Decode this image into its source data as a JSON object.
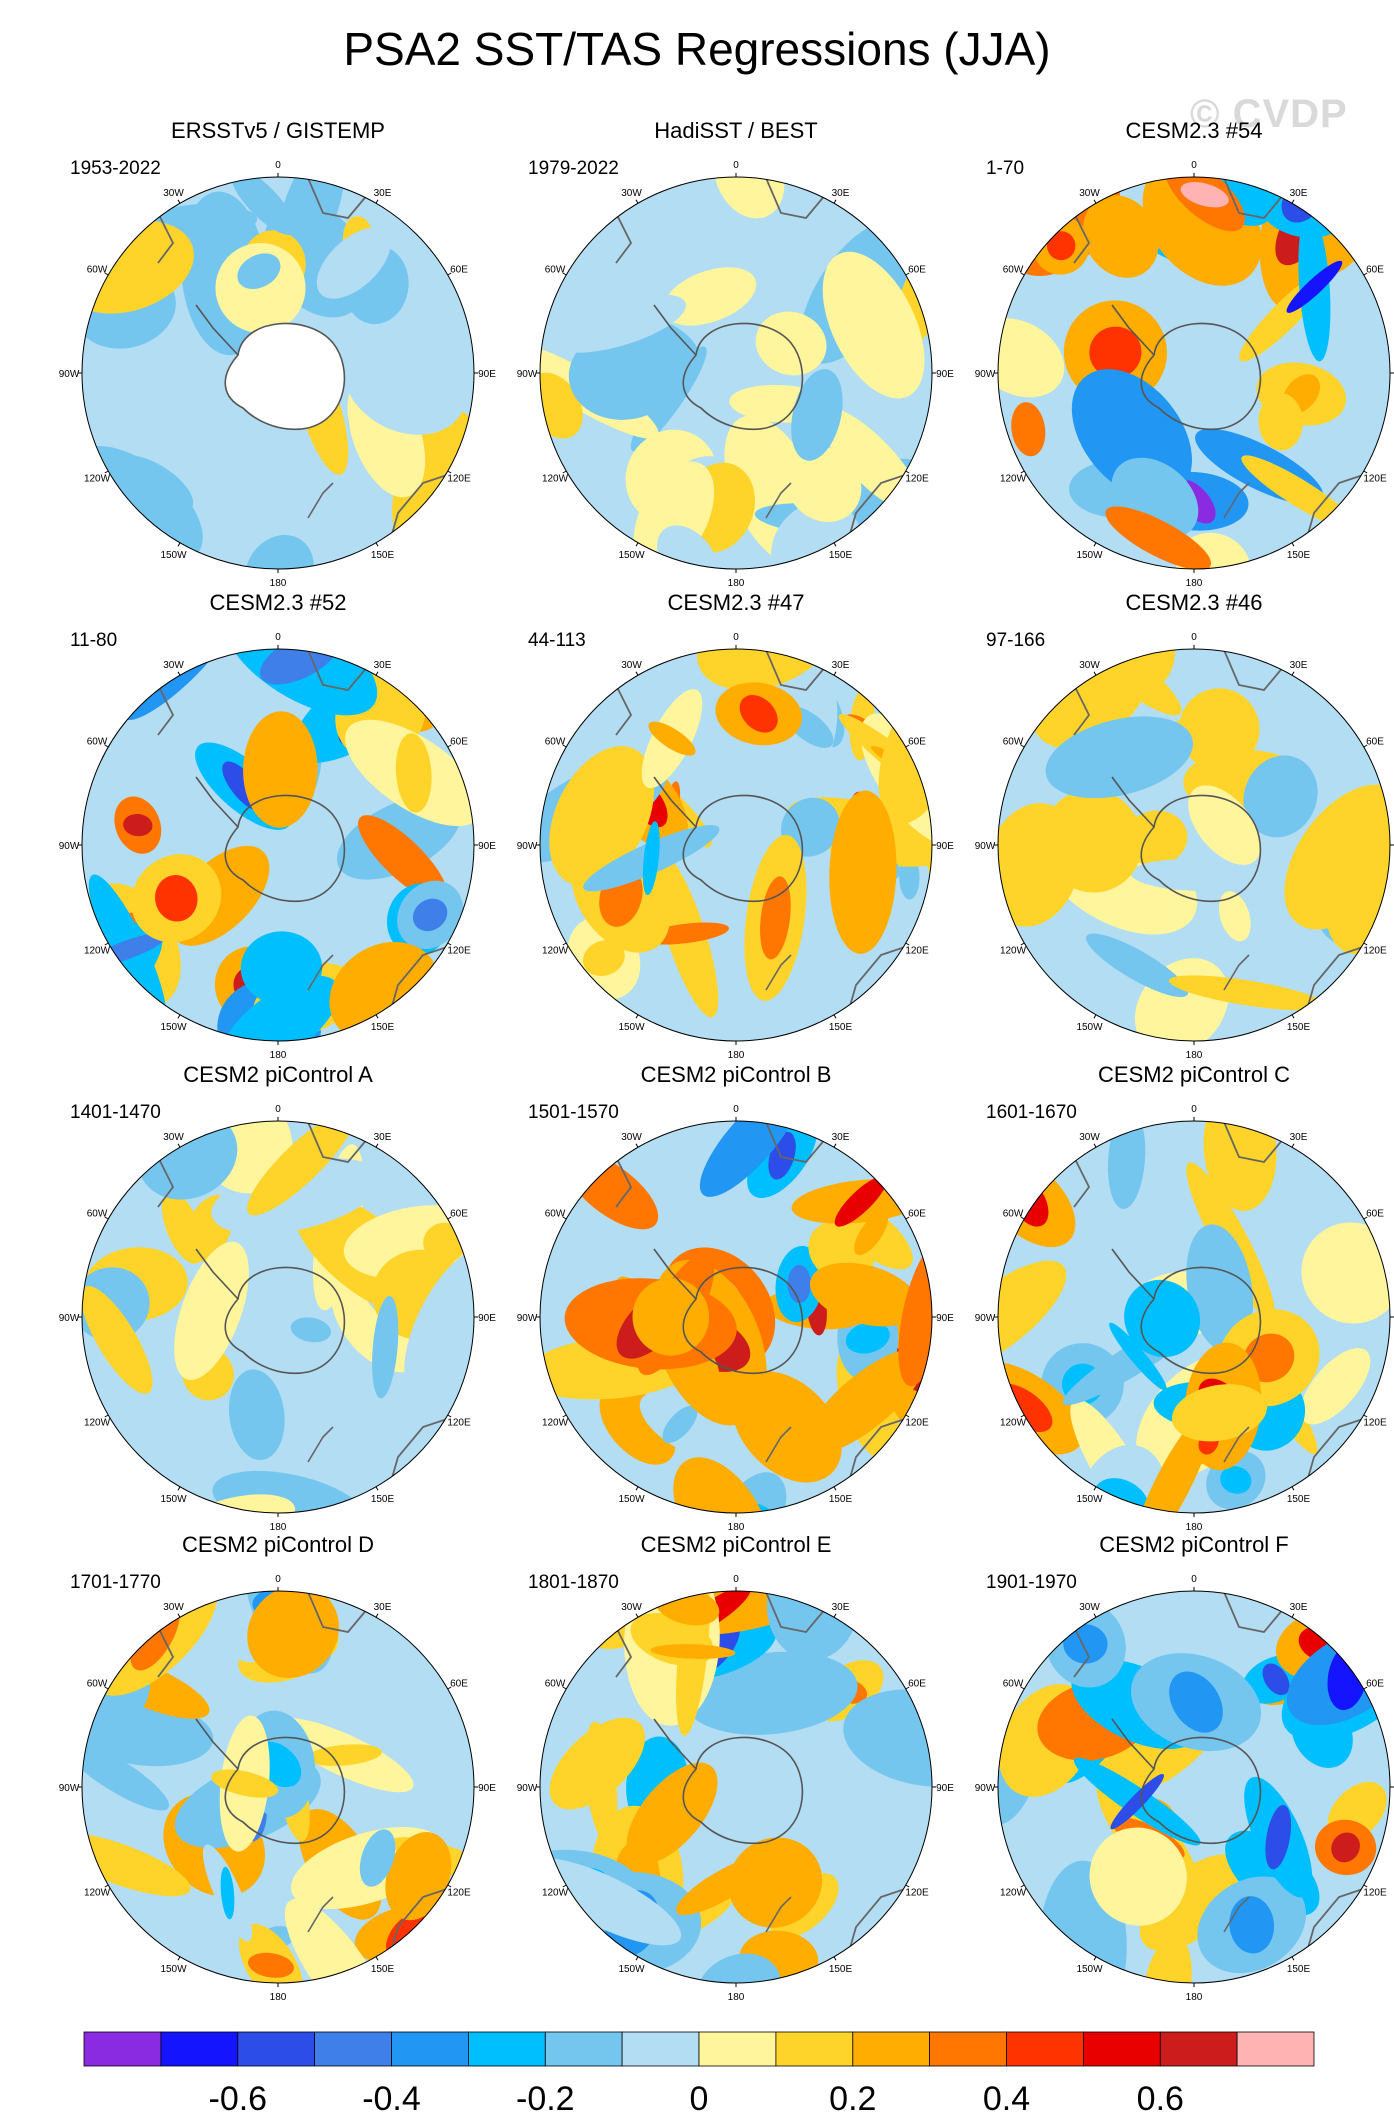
{
  "chart_data": {
    "type": "heatmap",
    "title": "PSA2 SST/TAS Regressions (JJA)",
    "watermark": "© CVDP",
    "projection": "south polar stereographic",
    "longitude_labels": [
      "0",
      "30E",
      "60E",
      "90E",
      "120E",
      "150E",
      "180",
      "150W",
      "120W",
      "90W",
      "60W",
      "30W"
    ],
    "panels": [
      {
        "name": "ERSSTv5 / GISTEMP",
        "years": "1953-2022",
        "amp": 0.55,
        "seed": 11,
        "land": "white"
      },
      {
        "name": "HadiSST / BEST",
        "years": "1979-2022",
        "amp": 0.45,
        "seed": 23,
        "land": "field"
      },
      {
        "name": "CESM2.3 #54",
        "years": "1-70",
        "amp": 1.0,
        "seed": 37,
        "land": "field"
      },
      {
        "name": "CESM2.3 #52",
        "years": "11-80",
        "amp": 0.9,
        "seed": 41,
        "land": "field"
      },
      {
        "name": "CESM2.3 #47",
        "years": "44-113",
        "amp": 0.65,
        "seed": 53,
        "land": "field"
      },
      {
        "name": "CESM2.3 #46",
        "years": "97-166",
        "amp": 0.55,
        "seed": 67,
        "land": "field"
      },
      {
        "name": "CESM2 piControl A",
        "years": "1401-1470",
        "amp": 0.55,
        "seed": 71,
        "land": "field"
      },
      {
        "name": "CESM2 piControl B",
        "years": "1501-1570",
        "amp": 1.0,
        "seed": 83,
        "land": "field"
      },
      {
        "name": "CESM2 piControl C",
        "years": "1601-1670",
        "amp": 0.7,
        "seed": 97,
        "land": "field"
      },
      {
        "name": "CESM2 piControl D",
        "years": "1701-1770",
        "amp": 0.7,
        "seed": 101,
        "land": "field"
      },
      {
        "name": "CESM2 piControl E",
        "years": "1801-1870",
        "amp": 0.8,
        "seed": 113,
        "land": "field"
      },
      {
        "name": "CESM2 piControl F",
        "years": "1901-1970",
        "amp": 0.85,
        "seed": 127,
        "land": "field"
      }
    ],
    "colorbar": {
      "levels": [
        -0.8,
        -0.7,
        -0.6,
        -0.5,
        -0.4,
        -0.3,
        -0.2,
        -0.1,
        0,
        0.1,
        0.2,
        0.3,
        0.4,
        0.5,
        0.6,
        0.7,
        0.8
      ],
      "colors": [
        "#8a2be2",
        "#1414ff",
        "#2d4de8",
        "#3f7fea",
        "#2196f3",
        "#00bfff",
        "#75c6ef",
        "#b3ddf2",
        "#fff59d",
        "#ffd42a",
        "#ffad00",
        "#ff7700",
        "#ff3300",
        "#e80000",
        "#cc1c1c",
        "#ffb3b3"
      ],
      "tick_labels": [
        "-0.6",
        "-0.4",
        "-0.2",
        "0",
        "0.2",
        "0.4",
        "0.6"
      ],
      "tick_values": [
        -0.6,
        -0.4,
        -0.2,
        0,
        0.2,
        0.4,
        0.6
      ]
    }
  }
}
